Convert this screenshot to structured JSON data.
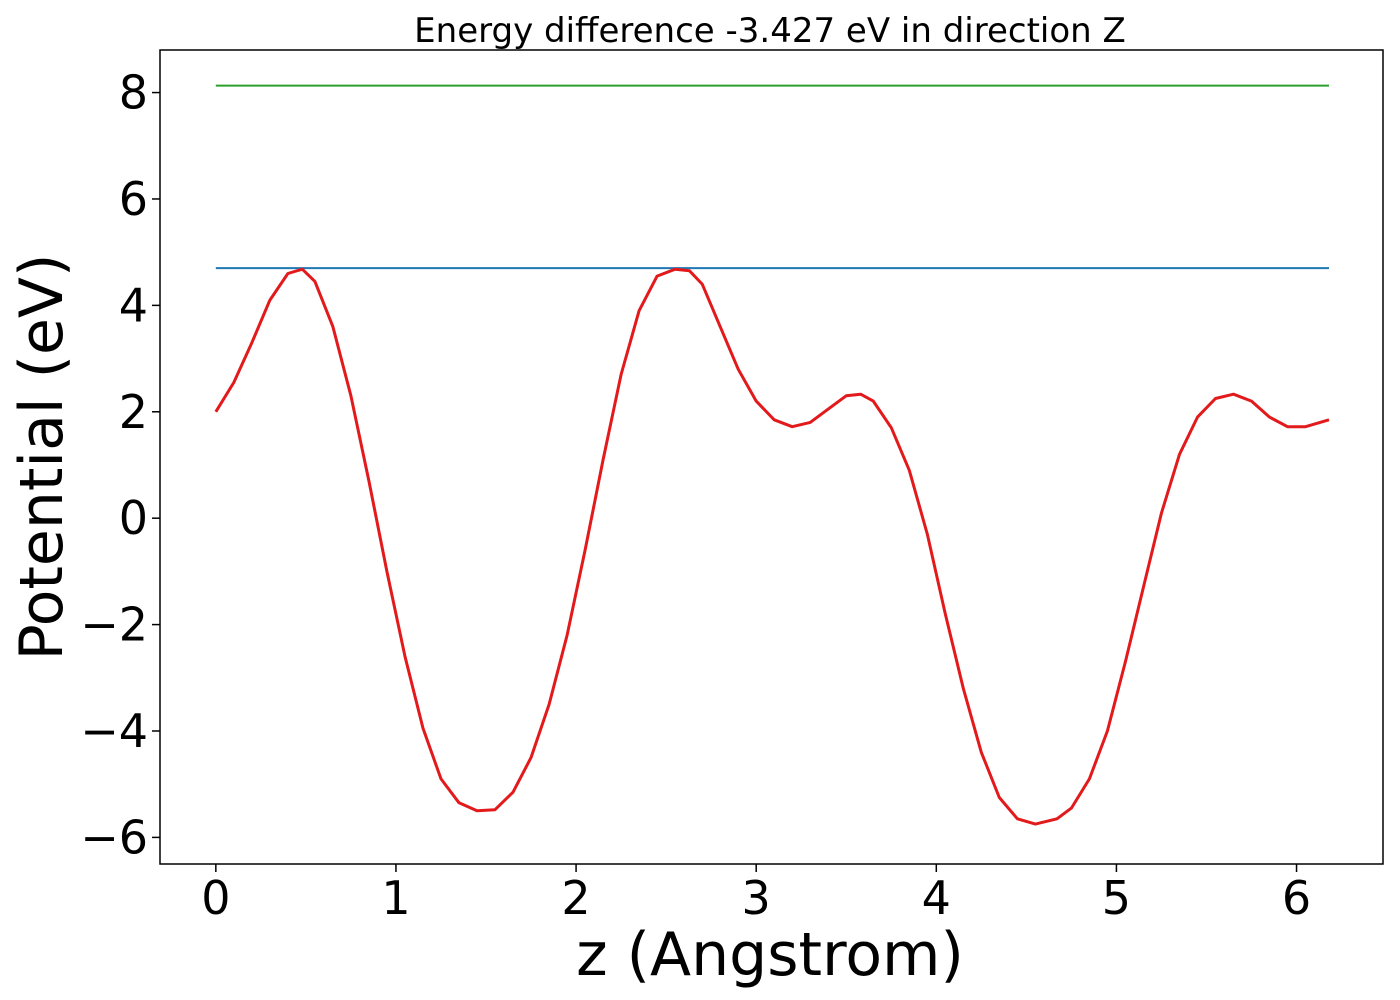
{
  "chart_data": {
    "type": "line",
    "title": "Energy difference -3.427 eV in direction Z",
    "xlabel": "z (Angstrom)",
    "ylabel": "Potential (eV)",
    "xlim": [
      -0.31,
      6.48
    ],
    "ylim": [
      -6.5,
      8.8
    ],
    "xticks": [
      0,
      1,
      2,
      3,
      4,
      5,
      6
    ],
    "yticks": [
      -6,
      -4,
      -2,
      0,
      2,
      4,
      6,
      8
    ],
    "xtick_labels": [
      "0",
      "1",
      "2",
      "3",
      "4",
      "5",
      "6"
    ],
    "ytick_labels": [
      "−6",
      "−4",
      "−2",
      "0",
      "2",
      "4",
      "6",
      "8"
    ],
    "grid": false,
    "series": [
      {
        "color": "#2ca02c",
        "line_width": 2,
        "x": [
          0.0,
          6.18
        ],
        "y": [
          8.13,
          8.13
        ]
      },
      {
        "color": "#1f77b4",
        "line_width": 2,
        "x": [
          0.0,
          6.18
        ],
        "y": [
          4.7,
          4.7
        ]
      },
      {
        "color": "#e31a1c",
        "line_width": 3,
        "x": [
          0.0,
          0.1,
          0.2,
          0.3,
          0.4,
          0.48,
          0.55,
          0.65,
          0.75,
          0.85,
          0.95,
          1.05,
          1.15,
          1.25,
          1.35,
          1.45,
          1.55,
          1.65,
          1.75,
          1.85,
          1.95,
          2.05,
          2.15,
          2.25,
          2.35,
          2.45,
          2.55,
          2.63,
          2.7,
          2.8,
          2.9,
          3.0,
          3.1,
          3.2,
          3.3,
          3.4,
          3.5,
          3.58,
          3.65,
          3.75,
          3.85,
          3.95,
          4.05,
          4.15,
          4.25,
          4.35,
          4.45,
          4.55,
          4.67,
          4.75,
          4.85,
          4.95,
          5.05,
          5.15,
          5.25,
          5.35,
          5.45,
          5.55,
          5.65,
          5.75,
          5.85,
          5.95,
          6.05,
          6.18
        ],
        "y": [
          2.0,
          2.55,
          3.3,
          4.1,
          4.6,
          4.68,
          4.45,
          3.6,
          2.3,
          0.7,
          -1.0,
          -2.6,
          -3.95,
          -4.9,
          -5.35,
          -5.5,
          -5.48,
          -5.15,
          -4.5,
          -3.5,
          -2.2,
          -0.6,
          1.1,
          2.7,
          3.9,
          4.55,
          4.68,
          4.65,
          4.4,
          3.6,
          2.8,
          2.2,
          1.85,
          1.72,
          1.8,
          2.05,
          2.3,
          2.33,
          2.2,
          1.7,
          0.9,
          -0.3,
          -1.8,
          -3.2,
          -4.4,
          -5.25,
          -5.65,
          -5.75,
          -5.65,
          -5.45,
          -4.9,
          -4.0,
          -2.7,
          -1.3,
          0.1,
          1.2,
          1.9,
          2.25,
          2.33,
          2.2,
          1.9,
          1.72,
          1.72,
          1.85
        ]
      }
    ]
  }
}
